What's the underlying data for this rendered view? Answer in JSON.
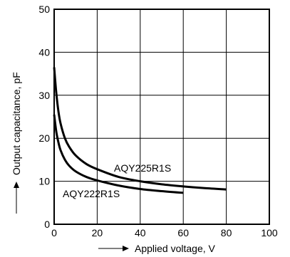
{
  "chart_data": {
    "type": "line",
    "title": "",
    "xlabel": "Applied voltage, V",
    "ylabel": "Output capacitance, pF",
    "xlim": [
      0,
      100
    ],
    "ylim": [
      0,
      50
    ],
    "x_ticks": [
      0,
      20,
      40,
      60,
      80,
      100
    ],
    "y_ticks": [
      0,
      10,
      20,
      30,
      40,
      50
    ],
    "grid": true,
    "series": [
      {
        "name": "AQY225R1S",
        "x": [
          0,
          1,
          2,
          3,
          5,
          7,
          10,
          15,
          20,
          30,
          40,
          50,
          60,
          70,
          80
        ],
        "y": [
          36.5,
          30.5,
          26.2,
          23.4,
          20.0,
          18.0,
          16.0,
          14.0,
          12.8,
          11.0,
          10.0,
          9.3,
          8.8,
          8.4,
          8.1
        ]
      },
      {
        "name": "AQY222R1S",
        "x": [
          0,
          1,
          2,
          3,
          5,
          7,
          10,
          15,
          20,
          30,
          40,
          50,
          60
        ],
        "y": [
          25.5,
          21.5,
          19.0,
          17.2,
          15.0,
          13.6,
          12.3,
          11.0,
          10.2,
          9.0,
          8.2,
          7.7,
          7.3
        ]
      }
    ]
  }
}
